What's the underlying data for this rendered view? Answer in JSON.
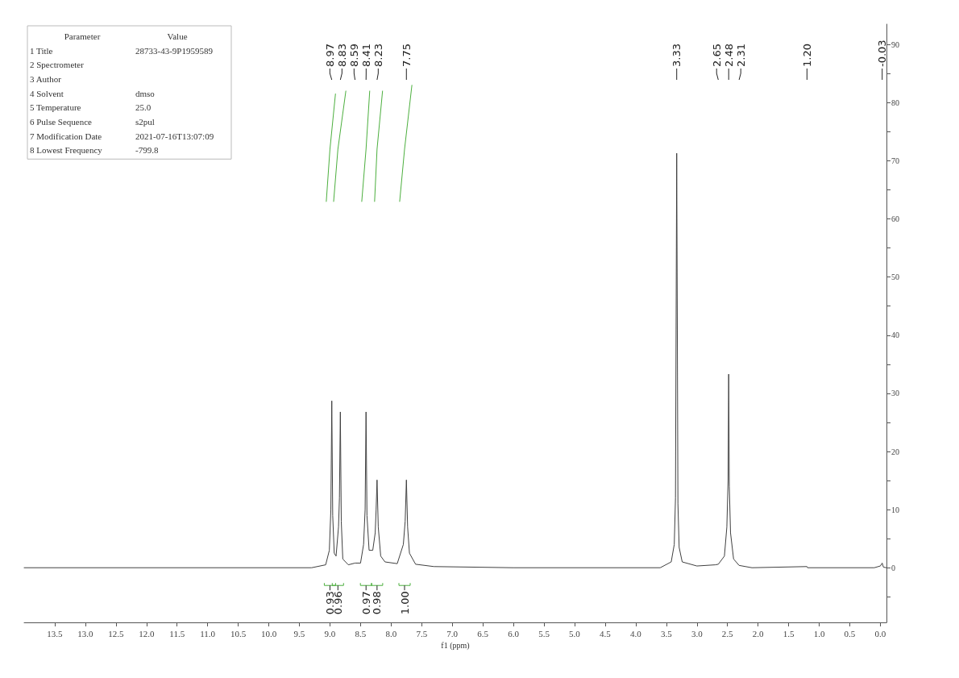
{
  "chart_data": {
    "type": "line",
    "xlabel": "f1 (ppm)",
    "marker": "none",
    "line_style": "solid",
    "grid": false,
    "xlim": [
      14.0,
      -0.1
    ],
    "xticks": [
      {
        "value": 13.5,
        "label": "13.5"
      },
      {
        "value": 13,
        "label": "13.0"
      },
      {
        "value": 12.5,
        "label": "12.5"
      },
      {
        "value": 12,
        "label": "12.0"
      },
      {
        "value": 11.5,
        "label": "11.5"
      },
      {
        "value": 11,
        "label": "11.0"
      },
      {
        "value": 10.5,
        "label": "10.5"
      },
      {
        "value": 10,
        "label": "10.0"
      },
      {
        "value": 9.5,
        "label": "9.5"
      },
      {
        "value": 9,
        "label": "9.0"
      },
      {
        "value": 8.5,
        "label": "8.5"
      },
      {
        "value": 8,
        "label": "8.0"
      },
      {
        "value": 7.5,
        "label": "7.5"
      },
      {
        "value": 7,
        "label": "7.0"
      },
      {
        "value": 6.5,
        "label": "6.5"
      },
      {
        "value": 6,
        "label": "6.0"
      },
      {
        "value": 5.5,
        "label": "5.5"
      },
      {
        "value": 5,
        "label": "5.0"
      },
      {
        "value": 4.5,
        "label": "4.5"
      },
      {
        "value": 4,
        "label": "4.0"
      },
      {
        "value": 3.5,
        "label": "3.5"
      },
      {
        "value": 3,
        "label": "3.0"
      },
      {
        "value": 2.5,
        "label": "2.5"
      },
      {
        "value": 2,
        "label": "2.0"
      },
      {
        "value": 1.5,
        "label": "1.5"
      },
      {
        "value": 1,
        "label": "1.0"
      },
      {
        "value": 0.5,
        "label": "0.5"
      },
      {
        "value": 0,
        "label": "0.0"
      }
    ],
    "ylim": [
      -9.4,
      93.5
    ],
    "yticks": [
      {
        "value": -5,
        "label": null
      },
      0,
      {
        "value": 5,
        "label": null
      },
      10,
      {
        "value": 15,
        "label": null
      },
      20,
      {
        "value": 25,
        "label": null
      },
      30,
      {
        "value": 35,
        "label": null
      },
      40,
      {
        "value": 45,
        "label": null
      },
      50,
      {
        "value": 55,
        "label": null
      },
      60,
      {
        "value": 65,
        "label": null
      },
      70,
      {
        "value": 75,
        "label": null
      },
      80,
      {
        "value": 85,
        "label": null
      },
      90
    ],
    "series": [
      {
        "color": "#404040",
        "x": [
          14.0,
          9.3,
          9.07,
          9.01,
          8.985,
          8.97,
          8.955,
          8.93,
          8.9,
          8.86,
          8.845,
          8.83,
          8.815,
          8.79,
          8.7,
          8.59,
          8.5,
          8.45,
          8.425,
          8.41,
          8.395,
          8.36,
          8.3,
          8.26,
          8.245,
          8.23,
          8.21,
          8.17,
          8.1,
          7.9,
          7.8,
          7.77,
          7.75,
          7.73,
          7.7,
          7.6,
          7.3,
          6.0,
          3.6,
          3.42,
          3.37,
          3.35,
          3.33,
          3.31,
          3.29,
          3.24,
          3.0,
          2.7,
          2.65,
          2.55,
          2.51,
          2.49,
          2.48,
          2.47,
          2.45,
          2.4,
          2.31,
          2.1,
          1.2,
          1.19,
          0.1,
          0.0,
          -0.03,
          -0.05,
          -0.1
        ],
        "values": [
          0,
          0,
          0.5,
          3,
          10,
          28.7,
          9,
          2.5,
          2,
          7,
          12,
          26.8,
          8,
          1.5,
          0.5,
          0.8,
          0.8,
          4,
          10,
          26.8,
          9,
          3,
          3,
          6,
          10,
          15.1,
          7,
          2,
          1,
          0.7,
          4,
          8,
          15.1,
          7,
          2.5,
          0.6,
          0.2,
          0,
          0,
          1,
          4,
          12,
          71.3,
          11,
          3.5,
          1,
          0.3,
          0.5,
          0.6,
          2,
          7,
          15,
          33.3,
          14,
          6,
          1.5,
          0.4,
          0,
          0.2,
          0,
          0,
          0.3,
          0.8,
          0.1,
          0
        ]
      },
      {
        "color": "#4caf3e",
        "x": [
          9.06,
          9.0,
          8.91
        ],
        "values": [
          63,
          72,
          81.5
        ]
      },
      {
        "color": "#4caf3e",
        "x": [
          8.94,
          8.87,
          8.74
        ],
        "values": [
          63,
          72,
          82
        ]
      },
      {
        "color": "#4caf3e",
        "x": [
          8.48,
          8.41,
          8.35
        ],
        "values": [
          63,
          72,
          82
        ]
      },
      {
        "color": "#4caf3e",
        "x": [
          8.27,
          8.23,
          8.14
        ],
        "values": [
          63,
          72,
          82
        ]
      },
      {
        "color": "#4caf3e",
        "x": [
          7.86,
          7.78,
          7.66
        ],
        "values": [
          63,
          72,
          83
        ]
      }
    ],
    "annotations": [
      "Parameter\tValue",
      "1 Title\t28733-43-9P1959589",
      "2 Spectrometer\t",
      "3 Author\t",
      "4 Solvent\tdmso",
      "5 Temperature\t25.0",
      "6 Pulse Sequence\ts2pul",
      "7 Modification Date\t2021-07-16T13:07:09",
      "8 Lowest Frequency\t-799.8",
      "8.97",
      "8.83",
      "8.59",
      "8.41",
      "8.23",
      "7.75",
      "3.33",
      "2.65",
      "2.48",
      "2.31",
      "1.20",
      "-0.03",
      "0.93",
      "0.96",
      "0.97",
      "0.98",
      "1.00"
    ]
  }
}
